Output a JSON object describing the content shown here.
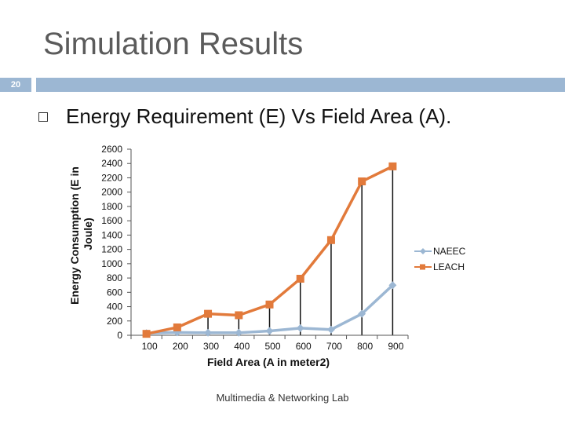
{
  "slide": {
    "title": "Simulation Results",
    "number": "20",
    "bullet": "Energy Requirement (E) Vs Field Area (A).",
    "footer": "Multimedia & Networking Lab",
    "accent_color": "#9cb7d3",
    "bullet_icon": "hollow-square-bullet-icon"
  },
  "chart_data": {
    "type": "line",
    "title": "",
    "xlabel": "Field Area (A in meter2)",
    "ylabel": "Energy Consumption (E in Joule)",
    "x": [
      100,
      200,
      300,
      400,
      500,
      600,
      700,
      800,
      900
    ],
    "ylim": [
      0,
      2600
    ],
    "yticks": [
      0,
      200,
      400,
      600,
      800,
      1000,
      1200,
      1400,
      1600,
      1800,
      2000,
      2200,
      2400,
      2600
    ],
    "grid": "vertical-drop-lines",
    "legend": "right",
    "series": [
      {
        "name": "NAEEC",
        "values": [
          30,
          40,
          35,
          35,
          60,
          100,
          80,
          300,
          700
        ],
        "color": "#9cb7d3",
        "marker": "diamond"
      },
      {
        "name": "LEACH",
        "values": [
          20,
          110,
          300,
          280,
          430,
          790,
          1330,
          2150,
          2360
        ],
        "color": "#e27a3b",
        "marker": "square"
      }
    ]
  }
}
